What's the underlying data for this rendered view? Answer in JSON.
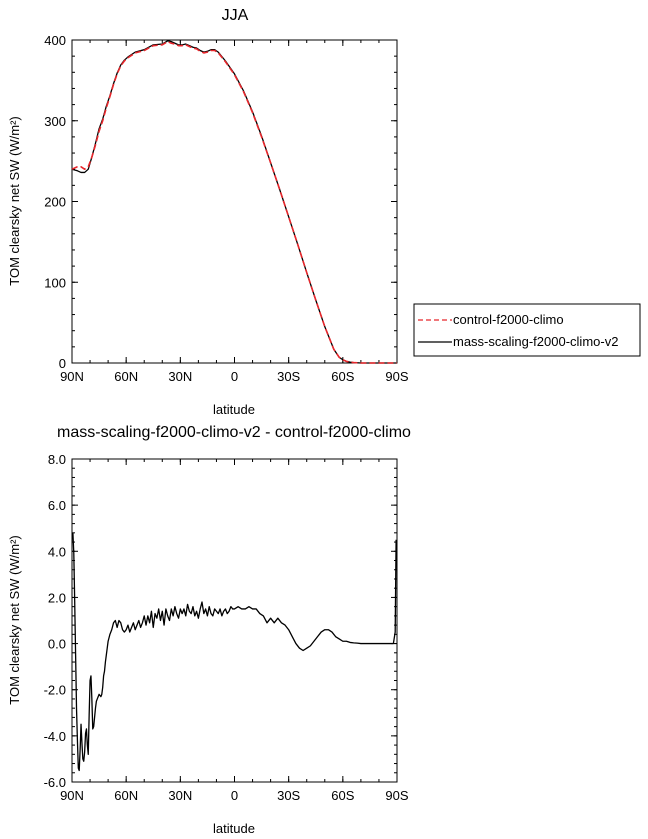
{
  "colors": {
    "control": "#e8262b",
    "mass_scaling": "#000000"
  },
  "chart_data": [
    {
      "type": "line",
      "title": "JJA",
      "xlabel": "latitude",
      "ylabel": "TOM clearsky net SW (W/m²)",
      "xlim": [
        90,
        -90
      ],
      "ylim": [
        0,
        400
      ],
      "x_ticks": [
        "90N",
        "60N",
        "30N",
        "0",
        "30S",
        "60S",
        "90S"
      ],
      "y_ticks": [
        "0",
        "100",
        "200",
        "300",
        "400"
      ],
      "legend": {
        "position": "right",
        "entries": [
          "control-f2000-climo",
          "mass-scaling-f2000-climo-v2"
        ]
      },
      "x": [
        90,
        87,
        85,
        83,
        81,
        79,
        77,
        75,
        73,
        71,
        69,
        67,
        65,
        63,
        61,
        59,
        55,
        50,
        45,
        40,
        37,
        35,
        33,
        31,
        29,
        27,
        25,
        23,
        21,
        19,
        17,
        15,
        13,
        11,
        9,
        5,
        0,
        -5,
        -10,
        -15,
        -20,
        -25,
        -30,
        -35,
        -40,
        -45,
        -50,
        -55,
        -58,
        -60,
        -62,
        -64,
        -66,
        -68,
        -70,
        -75,
        -80,
        -85,
        -90
      ],
      "series": [
        {
          "name": "control-f2000-climo",
          "style": "dashed",
          "values": [
            240,
            243,
            243,
            240,
            243,
            255,
            270,
            287,
            300,
            316,
            330,
            345,
            358,
            368,
            374,
            378,
            384,
            387,
            393,
            394,
            398,
            396,
            395,
            393,
            393,
            394,
            392,
            390,
            389,
            386,
            384,
            385,
            387,
            387,
            384,
            373,
            357,
            336,
            310,
            280,
            248,
            215,
            181,
            147,
            112,
            78,
            45,
            17,
            7,
            4,
            2,
            1,
            0.5,
            0.3,
            0,
            0,
            0,
            0,
            0
          ]
        },
        {
          "name": "mass-scaling-f2000-climo-v2",
          "style": "solid",
          "values": [
            240,
            238,
            236,
            236,
            240,
            255,
            272,
            290,
            302,
            318,
            331,
            346,
            359,
            369,
            375,
            379,
            385,
            388,
            394,
            395,
            399,
            398,
            396,
            394,
            394,
            395,
            393,
            391,
            390,
            387,
            385,
            386,
            388,
            388,
            385,
            374,
            358,
            337,
            311,
            281,
            248,
            215,
            181,
            147,
            112,
            78,
            45,
            17,
            7,
            4,
            2,
            1,
            0.5,
            0.3,
            0,
            0,
            0,
            0,
            0
          ]
        }
      ]
    },
    {
      "type": "line",
      "title": "mass-scaling-f2000-climo-v2 - control-f2000-climo",
      "xlabel": "latitude",
      "ylabel": "TOM clearsky net SW (W/m²)",
      "xlim": [
        90,
        -90
      ],
      "ylim": [
        -6,
        8
      ],
      "x_ticks": [
        "90N",
        "60N",
        "30N",
        "0",
        "30S",
        "60S",
        "90S"
      ],
      "y_ticks": [
        "-6.0",
        "-4.0",
        "-2.0",
        "0.0",
        "2.0",
        "4.0",
        "6.0",
        "8.0"
      ],
      "x": [
        89.5,
        89,
        88.5,
        88,
        87.5,
        87,
        86.5,
        86,
        85.5,
        85,
        84.5,
        84,
        83.5,
        83,
        82.5,
        82,
        81.5,
        81,
        80.5,
        80,
        79.5,
        79,
        78.5,
        78,
        77.5,
        77,
        76.5,
        76,
        75.5,
        75,
        74.5,
        74,
        73.5,
        73,
        72.5,
        72,
        71.5,
        71,
        70.5,
        70,
        69,
        68,
        67,
        66,
        65,
        64,
        63,
        62,
        61,
        60,
        59,
        58,
        57,
        56,
        55,
        54,
        53,
        52,
        51,
        50,
        49,
        48,
        47,
        46,
        45,
        44,
        43,
        42,
        41,
        40,
        39,
        38,
        37,
        36,
        35,
        34,
        33,
        32,
        31,
        30,
        29,
        28,
        27,
        26,
        25,
        24,
        23,
        22,
        21,
        20,
        19,
        18,
        17,
        16,
        15,
        14,
        13,
        12,
        11,
        10,
        9,
        8,
        7,
        6,
        5,
        4,
        3,
        2,
        1,
        0,
        -2,
        -4,
        -6,
        -8,
        -10,
        -12,
        -14,
        -16,
        -18,
        -20,
        -22,
        -24,
        -26,
        -28,
        -30,
        -32,
        -34,
        -36,
        -38,
        -40,
        -42,
        -44,
        -46,
        -48,
        -50,
        -52,
        -54,
        -56,
        -58,
        -60,
        -62,
        -64,
        -66,
        -68,
        -70,
        -75,
        -80,
        -85,
        -88,
        -89,
        -89.5
      ],
      "series": [
        {
          "name": "mass-scaling-f2000-climo-v2 - control-f2000-climo",
          "style": "solid",
          "values": [
            4.8,
            3.9,
            1.8,
            -0.5,
            -2.8,
            -4.2,
            -5.4,
            -5.5,
            -4.6,
            -3.5,
            -4.3,
            -5.0,
            -5.1,
            -4.7,
            -3.9,
            -3.7,
            -4.4,
            -4.8,
            -3.1,
            -1.6,
            -1.4,
            -2.4,
            -3.7,
            -3.6,
            -3.2,
            -2.8,
            -2.5,
            -2.4,
            -2.3,
            -2.2,
            -2.25,
            -2.3,
            -2.2,
            -1.9,
            -1.4,
            -1.2,
            -0.8,
            -0.5,
            -0.2,
            0.1,
            0.4,
            0.6,
            0.9,
            1.0,
            0.7,
            1.0,
            0.9,
            0.6,
            0.5,
            0.6,
            0.8,
            0.5,
            0.7,
            0.9,
            0.6,
            0.8,
            1.0,
            0.7,
            0.9,
            1.2,
            0.8,
            1.2,
            0.9,
            1.4,
            0.7,
            1.3,
            1.1,
            1.5,
            1.0,
            1.4,
            0.8,
            1.5,
            1.2,
            1.0,
            1.5,
            1.2,
            1.6,
            1.3,
            1.1,
            1.5,
            1.3,
            1.5,
            1.2,
            1.7,
            1.4,
            1.3,
            1.6,
            1.2,
            1.4,
            1.1,
            1.5,
            1.8,
            1.3,
            1.5,
            1.2,
            1.6,
            1.3,
            1.2,
            1.5,
            1.4,
            1.3,
            1.5,
            1.2,
            1.4,
            1.5,
            1.3,
            1.4,
            1.6,
            1.5,
            1.5,
            1.6,
            1.5,
            1.5,
            1.6,
            1.5,
            1.5,
            1.3,
            1.2,
            0.9,
            1.1,
            0.9,
            1.1,
            0.9,
            0.8,
            0.6,
            0.3,
            0.0,
            -0.2,
            -0.3,
            -0.2,
            -0.1,
            0.1,
            0.3,
            0.5,
            0.6,
            0.6,
            0.5,
            0.3,
            0.2,
            0.1,
            0.1,
            0.05,
            0.03,
            0.02,
            0.0,
            0.0,
            0.0,
            0.0,
            0.0,
            0.5,
            4.5
          ]
        }
      ]
    }
  ]
}
